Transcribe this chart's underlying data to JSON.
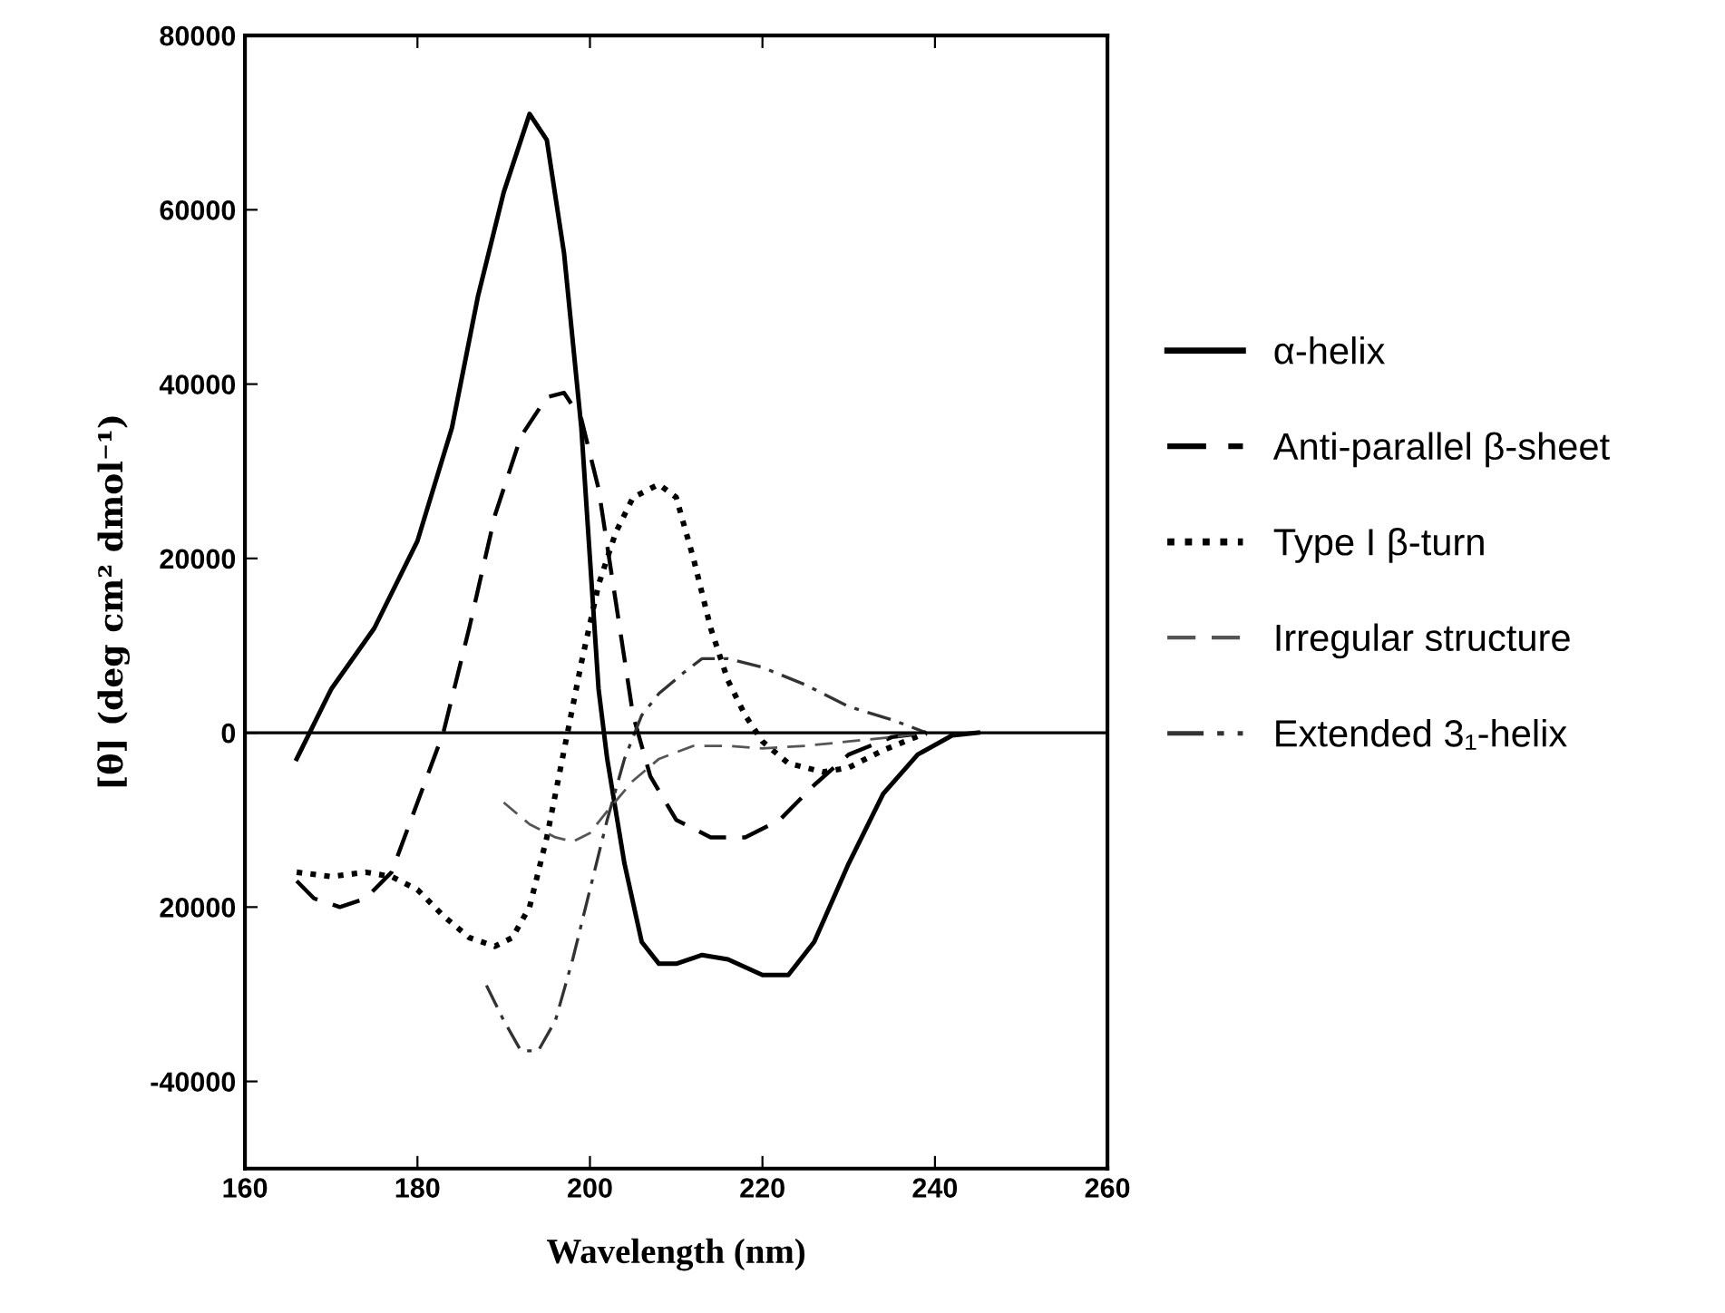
{
  "chart_data": {
    "type": "line",
    "xlabel": "Wavelength (nm)",
    "ylabel": "[θ] (deg cm² dmol⁻¹)",
    "xlim": [
      160,
      260
    ],
    "xticks": [
      160,
      180,
      200,
      220,
      240,
      260
    ],
    "ylim": [
      -50000,
      80000
    ],
    "yticks": [
      -40000,
      {
        "value": -20000,
        "label": "20000"
      },
      0,
      20000,
      40000,
      60000,
      80000
    ],
    "grid": false,
    "legend": "right",
    "ref_lines": [
      {
        "axis": "y",
        "value": 0,
        "color": "#000000",
        "line_style": "solid"
      }
    ],
    "series": [
      {
        "name": "α-helix",
        "color": "#000000",
        "line_style": "solid",
        "x": [
          166,
          170,
          175,
          180,
          184,
          187,
          190,
          193,
          195,
          197,
          199,
          200,
          201,
          202,
          204,
          206,
          208,
          210,
          213,
          216,
          220,
          223,
          226,
          230,
          234,
          238,
          242,
          245
        ],
        "values": [
          -3000,
          5000,
          12000,
          22000,
          35000,
          50000,
          62000,
          71000,
          68000,
          55000,
          35000,
          20000,
          5000,
          -3000,
          -15000,
          -24000,
          -26500,
          -26500,
          -25500,
          -26000,
          -27800,
          -27800,
          -24000,
          -15000,
          -7000,
          -2500,
          -300,
          0
        ]
      },
      {
        "name": "Anti-parallel β-sheet",
        "color": "#000000",
        "line_style": "dashed",
        "x": [
          166,
          168,
          171,
          174,
          177,
          180,
          183,
          186,
          189,
          192,
          195,
          197,
          199,
          201,
          203,
          205,
          207,
          210,
          214,
          218,
          222,
          226,
          230,
          235,
          239
        ],
        "values": [
          -17000,
          -19000,
          -20000,
          -19000,
          -16000,
          -8000,
          0,
          12000,
          25000,
          34000,
          38500,
          39000,
          36000,
          28000,
          15000,
          2000,
          -5000,
          -10000,
          -12000,
          -12000,
          -10000,
          -6000,
          -2500,
          -500,
          0
        ]
      },
      {
        "name": "Type I β-turn",
        "color": "#000000",
        "line_style": "dotted",
        "x": [
          166,
          170,
          174,
          177,
          180,
          183,
          186,
          189,
          191,
          193,
          195,
          197,
          199,
          201,
          203,
          205,
          208,
          210,
          212,
          214,
          216,
          218,
          220,
          223,
          227,
          230,
          234,
          239
        ],
        "values": [
          -16000,
          -16500,
          -16000,
          -16500,
          -18000,
          -21000,
          -23500,
          -24500,
          -23500,
          -20000,
          -12000,
          -2000,
          8000,
          17000,
          23000,
          27000,
          28500,
          27000,
          20000,
          12000,
          6000,
          2000,
          -1000,
          -3500,
          -4500,
          -4000,
          -2000,
          0
        ]
      },
      {
        "name": "Irregular structure",
        "color": "#555555",
        "line_style": "dashed",
        "x": [
          190,
          193,
          196,
          198,
          200,
          202,
          205,
          208,
          212,
          216,
          220,
          225,
          230,
          235,
          239
        ],
        "values": [
          -8000,
          -10500,
          -12000,
          -12500,
          -11500,
          -9000,
          -5500,
          -3000,
          -1500,
          -1500,
          -1800,
          -1500,
          -1000,
          -500,
          0
        ]
      },
      {
        "name": "Extended 3₁-helix",
        "color": "#333333",
        "line_style": "dashdot",
        "x": [
          188,
          190,
          192,
          194,
          196,
          198,
          200,
          202,
          204,
          206,
          208,
          211,
          213,
          216,
          220,
          225,
          230,
          235,
          239
        ],
        "values": [
          -29000,
          -33000,
          -36500,
          -36500,
          -33000,
          -26000,
          -18000,
          -10000,
          -3000,
          2000,
          4500,
          7000,
          8500,
          8500,
          7500,
          5500,
          3000,
          1500,
          0
        ]
      }
    ]
  }
}
